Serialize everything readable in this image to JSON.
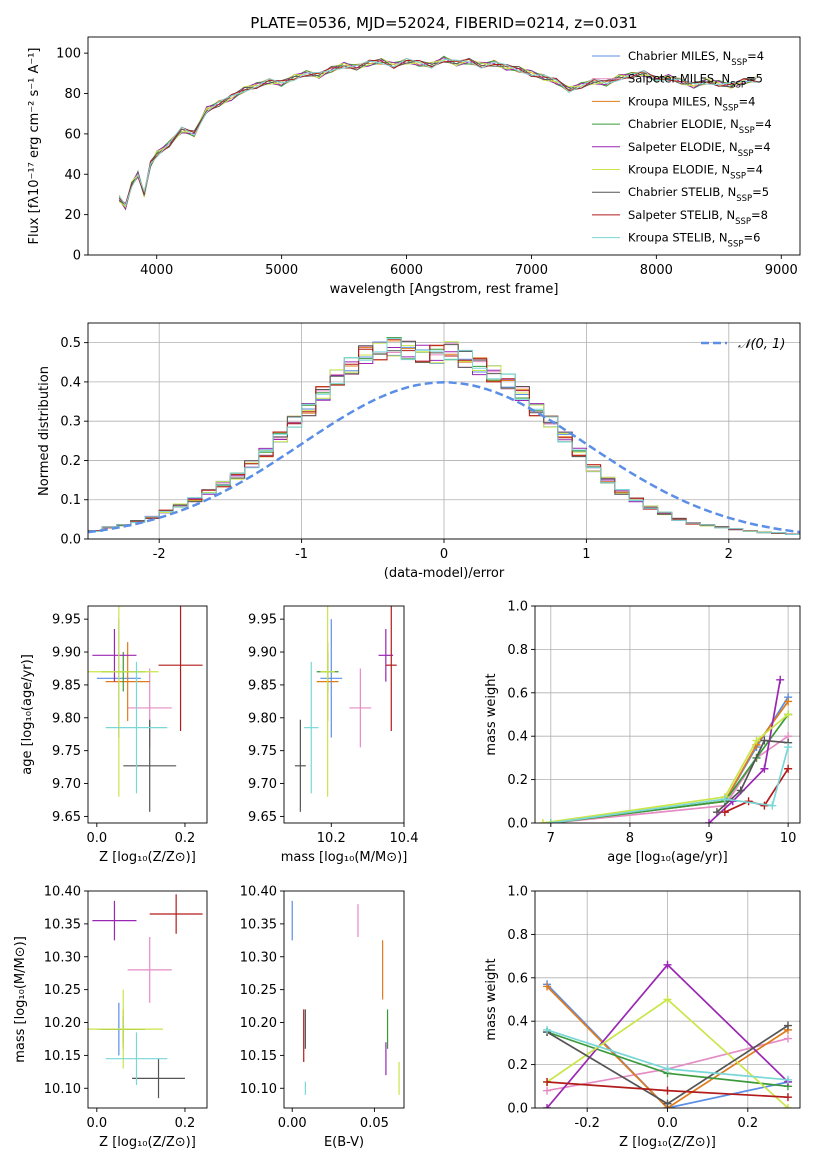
{
  "colors": [
    "#5b8ee6",
    "#e48cc4",
    "#e07b1c",
    "#3a9a3a",
    "#9a27b3",
    "#c9e64a",
    "#555555",
    "#b31b1b",
    "#7ad7d7"
  ],
  "chart_data": [
    {
      "id": "spectrum",
      "type": "line",
      "title": "PLATE=0536, MJD=52024, FIBERID=0214, z=0.031",
      "xlabel": "wavelength [Angstrom, rest frame]",
      "ylabel": "Flux [fλ10⁻¹⁷ erg cm⁻² s⁻¹ A⁻¹]",
      "xlim": [
        3450,
        9150
      ],
      "ylim": [
        0,
        108
      ],
      "xticks": [
        4000,
        5000,
        6000,
        7000,
        8000,
        9000
      ],
      "yticks": [
        0,
        20,
        40,
        60,
        80,
        100
      ],
      "grid": false,
      "legend_position": "right",
      "x": [
        3700,
        3750,
        3800,
        3850,
        3900,
        3950,
        4000,
        4100,
        4200,
        4300,
        4400,
        4500,
        4600,
        4700,
        4800,
        4900,
        5000,
        5100,
        5200,
        5300,
        5400,
        5500,
        5600,
        5700,
        5800,
        5900,
        6000,
        6100,
        6200,
        6300,
        6400,
        6500,
        6600,
        6700,
        6800,
        6900,
        7000,
        7100,
        7200,
        7300,
        7400,
        7500,
        7600,
        7700,
        7800,
        7900,
        8000,
        8100,
        8200,
        8300,
        8400,
        8500,
        8600,
        8700,
        8800
      ],
      "y": [
        28,
        24,
        35,
        40,
        30,
        45,
        50,
        55,
        62,
        60,
        72,
        75,
        78,
        82,
        84,
        86,
        85,
        88,
        90,
        89,
        92,
        94,
        93,
        95,
        96,
        94,
        96,
        95,
        94,
        97,
        95,
        96,
        94,
        95,
        93,
        92,
        90,
        88,
        86,
        82,
        84,
        86,
        85,
        88,
        89,
        90,
        87,
        88,
        86,
        84,
        86,
        85,
        84,
        86,
        87
      ],
      "series": [
        {
          "name": "Chabrier MILES, N_SSP=4"
        },
        {
          "name": "Salpeter MILES, N_SSP=5"
        },
        {
          "name": "Kroupa MILES, N_SSP=4"
        },
        {
          "name": "Chabrier ELODIE, N_SSP=4"
        },
        {
          "name": "Salpeter ELODIE, N_SSP=4"
        },
        {
          "name": "Kroupa ELODIE, N_SSP=4"
        },
        {
          "name": "Chabrier STELIB, N_SSP=5"
        },
        {
          "name": "Salpeter STELIB, N_SSP=8"
        },
        {
          "name": "Kroupa STELIB, N_SSP=6"
        }
      ]
    },
    {
      "id": "residuals",
      "type": "histogram",
      "xlabel": "(data-model)/error",
      "ylabel": "Normed distribution",
      "xlim": [
        -2.5,
        2.5
      ],
      "ylim": [
        0,
        0.55
      ],
      "xticks": [
        -2,
        -1,
        0,
        1,
        2
      ],
      "yticks": [
        0.0,
        0.1,
        0.2,
        0.3,
        0.4,
        0.5
      ],
      "grid": true,
      "legend": "𝒩(0, 1)",
      "legend_position": "top-right",
      "bin_width": 0.1,
      "hist_centers": [
        -2.45,
        -2.35,
        -2.25,
        -2.15,
        -2.05,
        -1.95,
        -1.85,
        -1.75,
        -1.65,
        -1.55,
        -1.45,
        -1.35,
        -1.25,
        -1.15,
        -1.05,
        -0.95,
        -0.85,
        -0.75,
        -0.65,
        -0.55,
        -0.45,
        -0.35,
        -0.25,
        -0.15,
        -0.05,
        0.05,
        0.15,
        0.25,
        0.35,
        0.45,
        0.55,
        0.65,
        0.75,
        0.85,
        0.95,
        1.05,
        1.15,
        1.25,
        1.35,
        1.45,
        1.55,
        1.65,
        1.75,
        1.85,
        1.95,
        2.05,
        2.15,
        2.25,
        2.35,
        2.45
      ],
      "hist_values": [
        0.02,
        0.03,
        0.035,
        0.045,
        0.055,
        0.07,
        0.085,
        0.1,
        0.12,
        0.14,
        0.16,
        0.19,
        0.22,
        0.26,
        0.3,
        0.33,
        0.37,
        0.41,
        0.44,
        0.47,
        0.48,
        0.49,
        0.48,
        0.47,
        0.47,
        0.48,
        0.46,
        0.44,
        0.42,
        0.4,
        0.37,
        0.33,
        0.3,
        0.26,
        0.22,
        0.18,
        0.15,
        0.12,
        0.1,
        0.08,
        0.065,
        0.05,
        0.04,
        0.035,
        0.03,
        0.025,
        0.02,
        0.017,
        0.015,
        0.012
      ]
    },
    {
      "id": "age-vs-Z",
      "type": "scatter",
      "xlabel": "Z [log₁₀(Z/Z⊙)]",
      "ylabel": "age  [log₁₀(age/yr)]",
      "xlim": [
        -0.02,
        0.25
      ],
      "ylim": [
        9.64,
        9.97
      ],
      "xticks": [
        0.0,
        0.2
      ],
      "yticks": [
        9.65,
        9.7,
        9.75,
        9.8,
        9.85,
        9.9,
        9.95
      ],
      "grid": false,
      "points": [
        {
          "x": 0.05,
          "y": 9.86,
          "xerr": 0.05,
          "yerr": 0.09
        },
        {
          "x": 0.12,
          "y": 9.815,
          "xerr": 0.05,
          "yerr": 0.06
        },
        {
          "x": 0.07,
          "y": 9.855,
          "xerr": 0.05,
          "yerr": 0.06
        },
        {
          "x": 0.06,
          "y": 9.87,
          "xerr": 0.05,
          "yerr": 0.03
        },
        {
          "x": 0.04,
          "y": 9.895,
          "xerr": 0.05,
          "yerr": 0.04
        },
        {
          "x": 0.05,
          "y": 9.87,
          "xerr": 0.09,
          "yerr": 0.19
        },
        {
          "x": 0.12,
          "y": 9.727,
          "xerr": 0.06,
          "yerr": 0.07
        },
        {
          "x": 0.19,
          "y": 9.88,
          "xerr": 0.05,
          "yerr": 0.1
        },
        {
          "x": 0.09,
          "y": 9.785,
          "xerr": 0.07,
          "yerr": 0.1
        }
      ]
    },
    {
      "id": "age-vs-mass",
      "type": "scatter",
      "xlabel": "mass [log₁₀(M/M⊙)]",
      "xlim": [
        10.07,
        10.4
      ],
      "ylim": [
        9.64,
        9.97
      ],
      "xticks": [
        10.2,
        10.4
      ],
      "yticks": [
        9.65,
        9.7,
        9.75,
        9.8,
        9.85,
        9.9,
        9.95
      ],
      "grid": false,
      "points": [
        {
          "x": 10.2,
          "y": 9.86,
          "xerr": 0.03,
          "yerr": 0.09
        },
        {
          "x": 10.28,
          "y": 9.815,
          "xerr": 0.03,
          "yerr": 0.06
        },
        {
          "x": 10.19,
          "y": 9.855,
          "xerr": 0.03,
          "yerr": 0.06
        },
        {
          "x": 10.19,
          "y": 9.87,
          "xerr": 0.03,
          "yerr": 0.03
        },
        {
          "x": 10.35,
          "y": 9.895,
          "xerr": 0.02,
          "yerr": 0.04
        },
        {
          "x": 10.19,
          "y": 9.87,
          "xerr": 0.02,
          "yerr": 0.19
        },
        {
          "x": 10.115,
          "y": 9.727,
          "xerr": 0.015,
          "yerr": 0.07
        },
        {
          "x": 10.365,
          "y": 9.88,
          "xerr": 0.015,
          "yerr": 0.1
        },
        {
          "x": 10.145,
          "y": 9.785,
          "xerr": 0.02,
          "yerr": 0.1
        }
      ]
    },
    {
      "id": "weight-vs-age",
      "type": "line",
      "xlabel": "age  [log₁₀(age/yr)]",
      "ylabel": "mass weight",
      "xlim": [
        6.8,
        10.15
      ],
      "ylim": [
        0,
        1
      ],
      "xticks": [
        7,
        8,
        9,
        10
      ],
      "yticks": [
        0.0,
        0.2,
        0.4,
        0.6,
        0.8,
        1.0
      ],
      "grid": true,
      "series": [
        {
          "x": [
            7.0,
            9.2,
            9.6,
            10.0
          ],
          "y": [
            0.0,
            0.1,
            0.35,
            0.58
          ]
        },
        {
          "x": [
            7.0,
            9.2,
            9.6,
            10.0
          ],
          "y": [
            0.0,
            0.08,
            0.3,
            0.4
          ]
        },
        {
          "x": [
            7.0,
            9.2,
            9.6,
            10.0
          ],
          "y": [
            0.0,
            0.1,
            0.36,
            0.56
          ]
        },
        {
          "x": [
            7.0,
            9.2,
            9.6,
            10.0
          ],
          "y": [
            0.0,
            0.1,
            0.3,
            0.5
          ]
        },
        {
          "x": [
            9.0,
            9.3,
            9.7,
            9.9
          ],
          "y": [
            0.0,
            0.1,
            0.25,
            0.66
          ]
        },
        {
          "x": [
            6.9,
            9.2,
            9.6,
            10.0
          ],
          "y": [
            0.0,
            0.12,
            0.38,
            0.5
          ]
        },
        {
          "x": [
            9.1,
            9.4,
            9.7,
            10.0
          ],
          "y": [
            0.05,
            0.15,
            0.38,
            0.37
          ]
        },
        {
          "x": [
            9.2,
            9.5,
            9.7,
            10.0
          ],
          "y": [
            0.05,
            0.1,
            0.08,
            0.25
          ]
        },
        {
          "x": [
            7.0,
            9.2,
            9.8,
            10.0
          ],
          "y": [
            0.0,
            0.11,
            0.08,
            0.35
          ]
        }
      ]
    },
    {
      "id": "mass-vs-Z",
      "type": "scatter",
      "xlabel": "Z [log₁₀(Z/Z⊙)]",
      "ylabel": "mass [log₁₀(M/M⊙)]",
      "xlim": [
        -0.02,
        0.25
      ],
      "ylim": [
        10.07,
        10.4
      ],
      "xticks": [
        0.0,
        0.2
      ],
      "yticks": [
        10.1,
        10.15,
        10.2,
        10.25,
        10.3,
        10.35,
        10.4
      ],
      "grid": false,
      "points": [
        {
          "x": 0.05,
          "y": 10.19,
          "xerr": 0.05,
          "yerr": 0.04
        },
        {
          "x": 0.12,
          "y": 10.28,
          "xerr": 0.05,
          "yerr": 0.05
        },
        {
          "x": 0.06,
          "y": 10.19,
          "xerr": 0.05,
          "yerr": 0.03
        },
        {
          "x": 0.06,
          "y": 10.19,
          "xerr": 0.05,
          "yerr": 0.02
        },
        {
          "x": 0.04,
          "y": 10.355,
          "xerr": 0.05,
          "yerr": 0.03
        },
        {
          "x": 0.06,
          "y": 10.19,
          "xerr": 0.09,
          "yerr": 0.06
        },
        {
          "x": 0.14,
          "y": 10.115,
          "xerr": 0.06,
          "yerr": 0.03
        },
        {
          "x": 0.18,
          "y": 10.365,
          "xerr": 0.06,
          "yerr": 0.03
        },
        {
          "x": 0.09,
          "y": 10.145,
          "xerr": 0.07,
          "yerr": 0.04
        }
      ]
    },
    {
      "id": "mass-vs-EBV",
      "type": "scatter",
      "xlabel": "E(B-V)",
      "xlim": [
        -0.005,
        0.068
      ],
      "ylim": [
        10.07,
        10.4
      ],
      "xticks": [
        0.0,
        0.05
      ],
      "yticks": [
        10.1,
        10.15,
        10.2,
        10.25,
        10.3,
        10.35,
        10.4
      ],
      "grid": false,
      "points": [
        {
          "x": 0.0,
          "y": 10.355,
          "yerr": 0.03
        },
        {
          "x": 0.04,
          "y": 10.355,
          "yerr": 0.025
        },
        {
          "x": 0.055,
          "y": 10.28,
          "yerr": 0.045
        },
        {
          "x": 0.058,
          "y": 10.19,
          "yerr": 0.03
        },
        {
          "x": 0.057,
          "y": 10.145,
          "yerr": 0.025
        },
        {
          "x": 0.065,
          "y": 10.115,
          "yerr": 0.025
        },
        {
          "x": 0.008,
          "y": 10.19,
          "yerr": 0.03
        },
        {
          "x": 0.007,
          "y": 10.18,
          "yerr": 0.04
        },
        {
          "x": 0.008,
          "y": 10.1,
          "yerr": 0.01
        }
      ]
    },
    {
      "id": "weight-vs-Z",
      "type": "line",
      "xlabel": "Z [log₁₀(Z/Z⊙)]",
      "ylabel": "mass weight",
      "xlim": [
        -0.33,
        0.33
      ],
      "ylim": [
        0,
        1
      ],
      "xticks": [
        -0.2,
        0.0,
        0.2
      ],
      "yticks": [
        0.0,
        0.2,
        0.4,
        0.6,
        0.8,
        1.0
      ],
      "grid": true,
      "series": [
        {
          "x": [
            -0.3,
            0.0,
            0.3
          ],
          "y": [
            0.57,
            0.0,
            0.12
          ]
        },
        {
          "x": [
            -0.3,
            0.0,
            0.3
          ],
          "y": [
            0.08,
            0.18,
            0.32
          ]
        },
        {
          "x": [
            -0.3,
            0.0,
            0.3
          ],
          "y": [
            0.56,
            0.0,
            0.36
          ]
        },
        {
          "x": [
            -0.3,
            0.0,
            0.3
          ],
          "y": [
            0.35,
            0.16,
            0.1
          ]
        },
        {
          "x": [
            -0.3,
            0.0,
            0.3
          ],
          "y": [
            0.0,
            0.66,
            0.12
          ]
        },
        {
          "x": [
            -0.3,
            0.0,
            0.3
          ],
          "y": [
            0.12,
            0.5,
            0.0
          ]
        },
        {
          "x": [
            -0.3,
            0.0,
            0.3
          ],
          "y": [
            0.35,
            0.02,
            0.38
          ]
        },
        {
          "x": [
            -0.3,
            0.0,
            0.3
          ],
          "y": [
            0.12,
            0.08,
            0.05
          ]
        },
        {
          "x": [
            -0.3,
            0.0,
            0.3
          ],
          "y": [
            0.36,
            0.18,
            0.13
          ]
        }
      ]
    }
  ]
}
